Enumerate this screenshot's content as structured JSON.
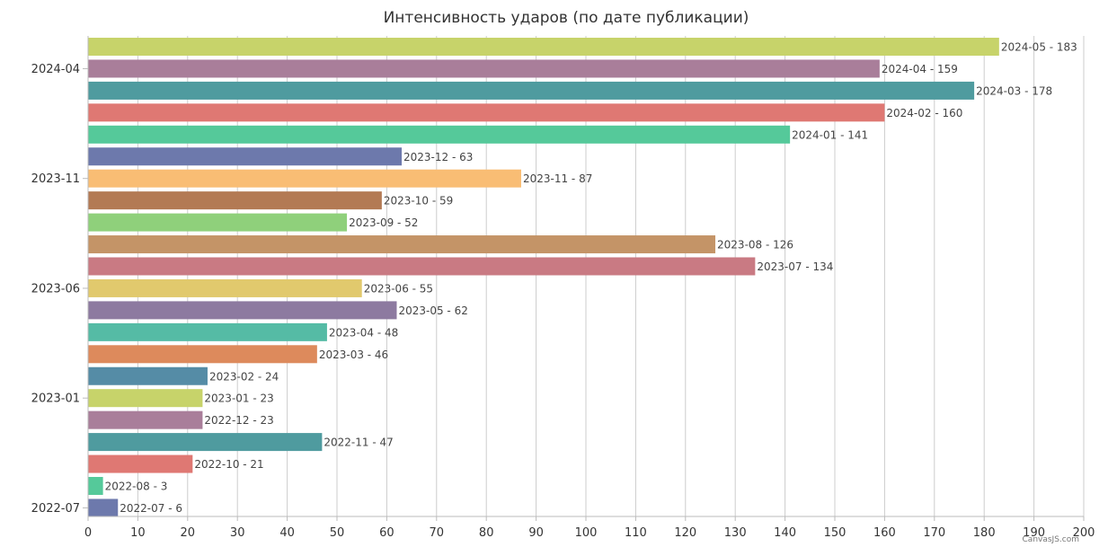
{
  "chart_data": {
    "type": "bar",
    "orientation": "horizontal",
    "title": "Интенсивность ударов (по дате публикации)",
    "xlabel": "",
    "ylabel": "",
    "xlim": [
      0,
      200
    ],
    "x_ticks": [
      0,
      10,
      20,
      30,
      40,
      50,
      60,
      70,
      80,
      90,
      100,
      110,
      120,
      130,
      140,
      150,
      160,
      170,
      180,
      190,
      200
    ],
    "grid": "vertical",
    "y_tick_labels": [
      "2024-04",
      "2023-11",
      "2023-06",
      "2023-01",
      "2022-07"
    ],
    "label_separator": " - ",
    "categories": [
      "2024-05",
      "2024-04",
      "2024-03",
      "2024-02",
      "2024-01",
      "2023-12",
      "2023-11",
      "2023-10",
      "2023-09",
      "2023-08",
      "2023-07",
      "2023-06",
      "2023-05",
      "2023-04",
      "2023-03",
      "2023-02",
      "2023-01",
      "2022-12",
      "2022-11",
      "2022-10",
      "2022-08",
      "2022-07"
    ],
    "values": [
      183,
      159,
      178,
      160,
      141,
      63,
      87,
      59,
      52,
      126,
      134,
      55,
      62,
      48,
      46,
      24,
      23,
      23,
      47,
      21,
      3,
      6
    ],
    "colors": [
      "#c7d36a",
      "#a97e9a",
      "#4f9b9f",
      "#df7873",
      "#55c99a",
      "#6d79ac",
      "#f9bd74",
      "#b37a54",
      "#8fd07b",
      "#c49467",
      "#c97a83",
      "#e1c96d",
      "#8d7aa0",
      "#55bba5",
      "#dd8a5c",
      "#558ca6",
      "#c7d36a",
      "#a97e9a",
      "#4f9b9f",
      "#df7873",
      "#55c99a",
      "#6d79ac"
    ]
  },
  "credit": "CanvasJS.com"
}
